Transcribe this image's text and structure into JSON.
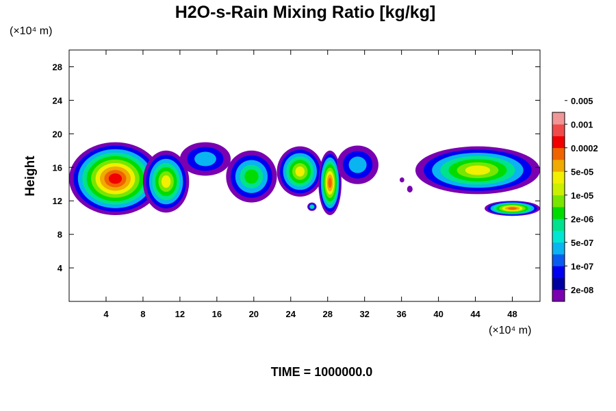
{
  "chart_data": {
    "type": "heatmap",
    "title": "H2O-s-Rain Mixing Ratio [kg/kg]",
    "ylabel": "Height",
    "y_unit": "(×10⁴ m)",
    "x_unit": "(×10⁴ m)",
    "footer": "TIME = 1000000.0",
    "xlim": [
      0,
      51
    ],
    "ylim": [
      0,
      30
    ],
    "x_ticks": [
      4,
      8,
      12,
      16,
      20,
      24,
      28,
      32,
      36,
      40,
      44,
      48
    ],
    "y_ticks": [
      4,
      8,
      12,
      16,
      20,
      24,
      28
    ],
    "legend_position": "right",
    "colorbar": {
      "colors": [
        "#7a00b0",
        "#0000a0",
        "#0000f0",
        "#0a5cf0",
        "#0ab4f0",
        "#00e6d2",
        "#00e28c",
        "#00dc00",
        "#78e600",
        "#c8f000",
        "#f0f000",
        "#f0aa00",
        "#f06400",
        "#f00000",
        "#f04b4b",
        "#f09696"
      ],
      "labels": [
        "2e-08",
        "1e-07",
        "5e-07",
        "2e-06",
        "1e-05",
        "5e-05",
        "0.0002",
        "0.001",
        "0.005"
      ]
    },
    "level_colors": [
      "#7a00b0",
      "#0000f0",
      "#0ab4f0",
      "#00e28c",
      "#00dc00",
      "#78e600",
      "#f0f000",
      "#f0aa00",
      "#f06400",
      "#f00000"
    ],
    "blobs": [
      {
        "x": [
          0,
          10
        ],
        "y": [
          10.3,
          19
        ],
        "peak": 9
      },
      {
        "x": [
          8,
          13
        ],
        "y": [
          10.6,
          18
        ],
        "peak": 6
      },
      {
        "x": [
          12,
          17.5
        ],
        "y": [
          15,
          19
        ],
        "peak": 2
      },
      {
        "x": [
          17,
          22.5
        ],
        "y": [
          11.8,
          18
        ],
        "peak": 4
      },
      {
        "x": [
          22.5,
          27.5
        ],
        "y": [
          12.5,
          18.5
        ],
        "peak": 6
      },
      {
        "x": [
          27,
          29.5
        ],
        "y": [
          10.3,
          18
        ],
        "peak": 8
      },
      {
        "x": [
          29,
          33.5
        ],
        "y": [
          14,
          18.6
        ],
        "peak": 2
      },
      {
        "x": [
          25.8,
          26.8
        ],
        "y": [
          10.8,
          11.8
        ],
        "peak": 3
      },
      {
        "x": [
          37.5,
          51
        ],
        "y": [
          12.8,
          18.5
        ],
        "peak": 6
      },
      {
        "x": [
          45,
          51
        ],
        "y": [
          10.2,
          12
        ],
        "peak": 8
      },
      {
        "x": [
          35.8,
          36.3
        ],
        "y": [
          14.2,
          14.8
        ],
        "peak": 0
      },
      {
        "x": [
          36.6,
          37.2
        ],
        "y": [
          13,
          13.8
        ],
        "peak": 0
      }
    ]
  }
}
